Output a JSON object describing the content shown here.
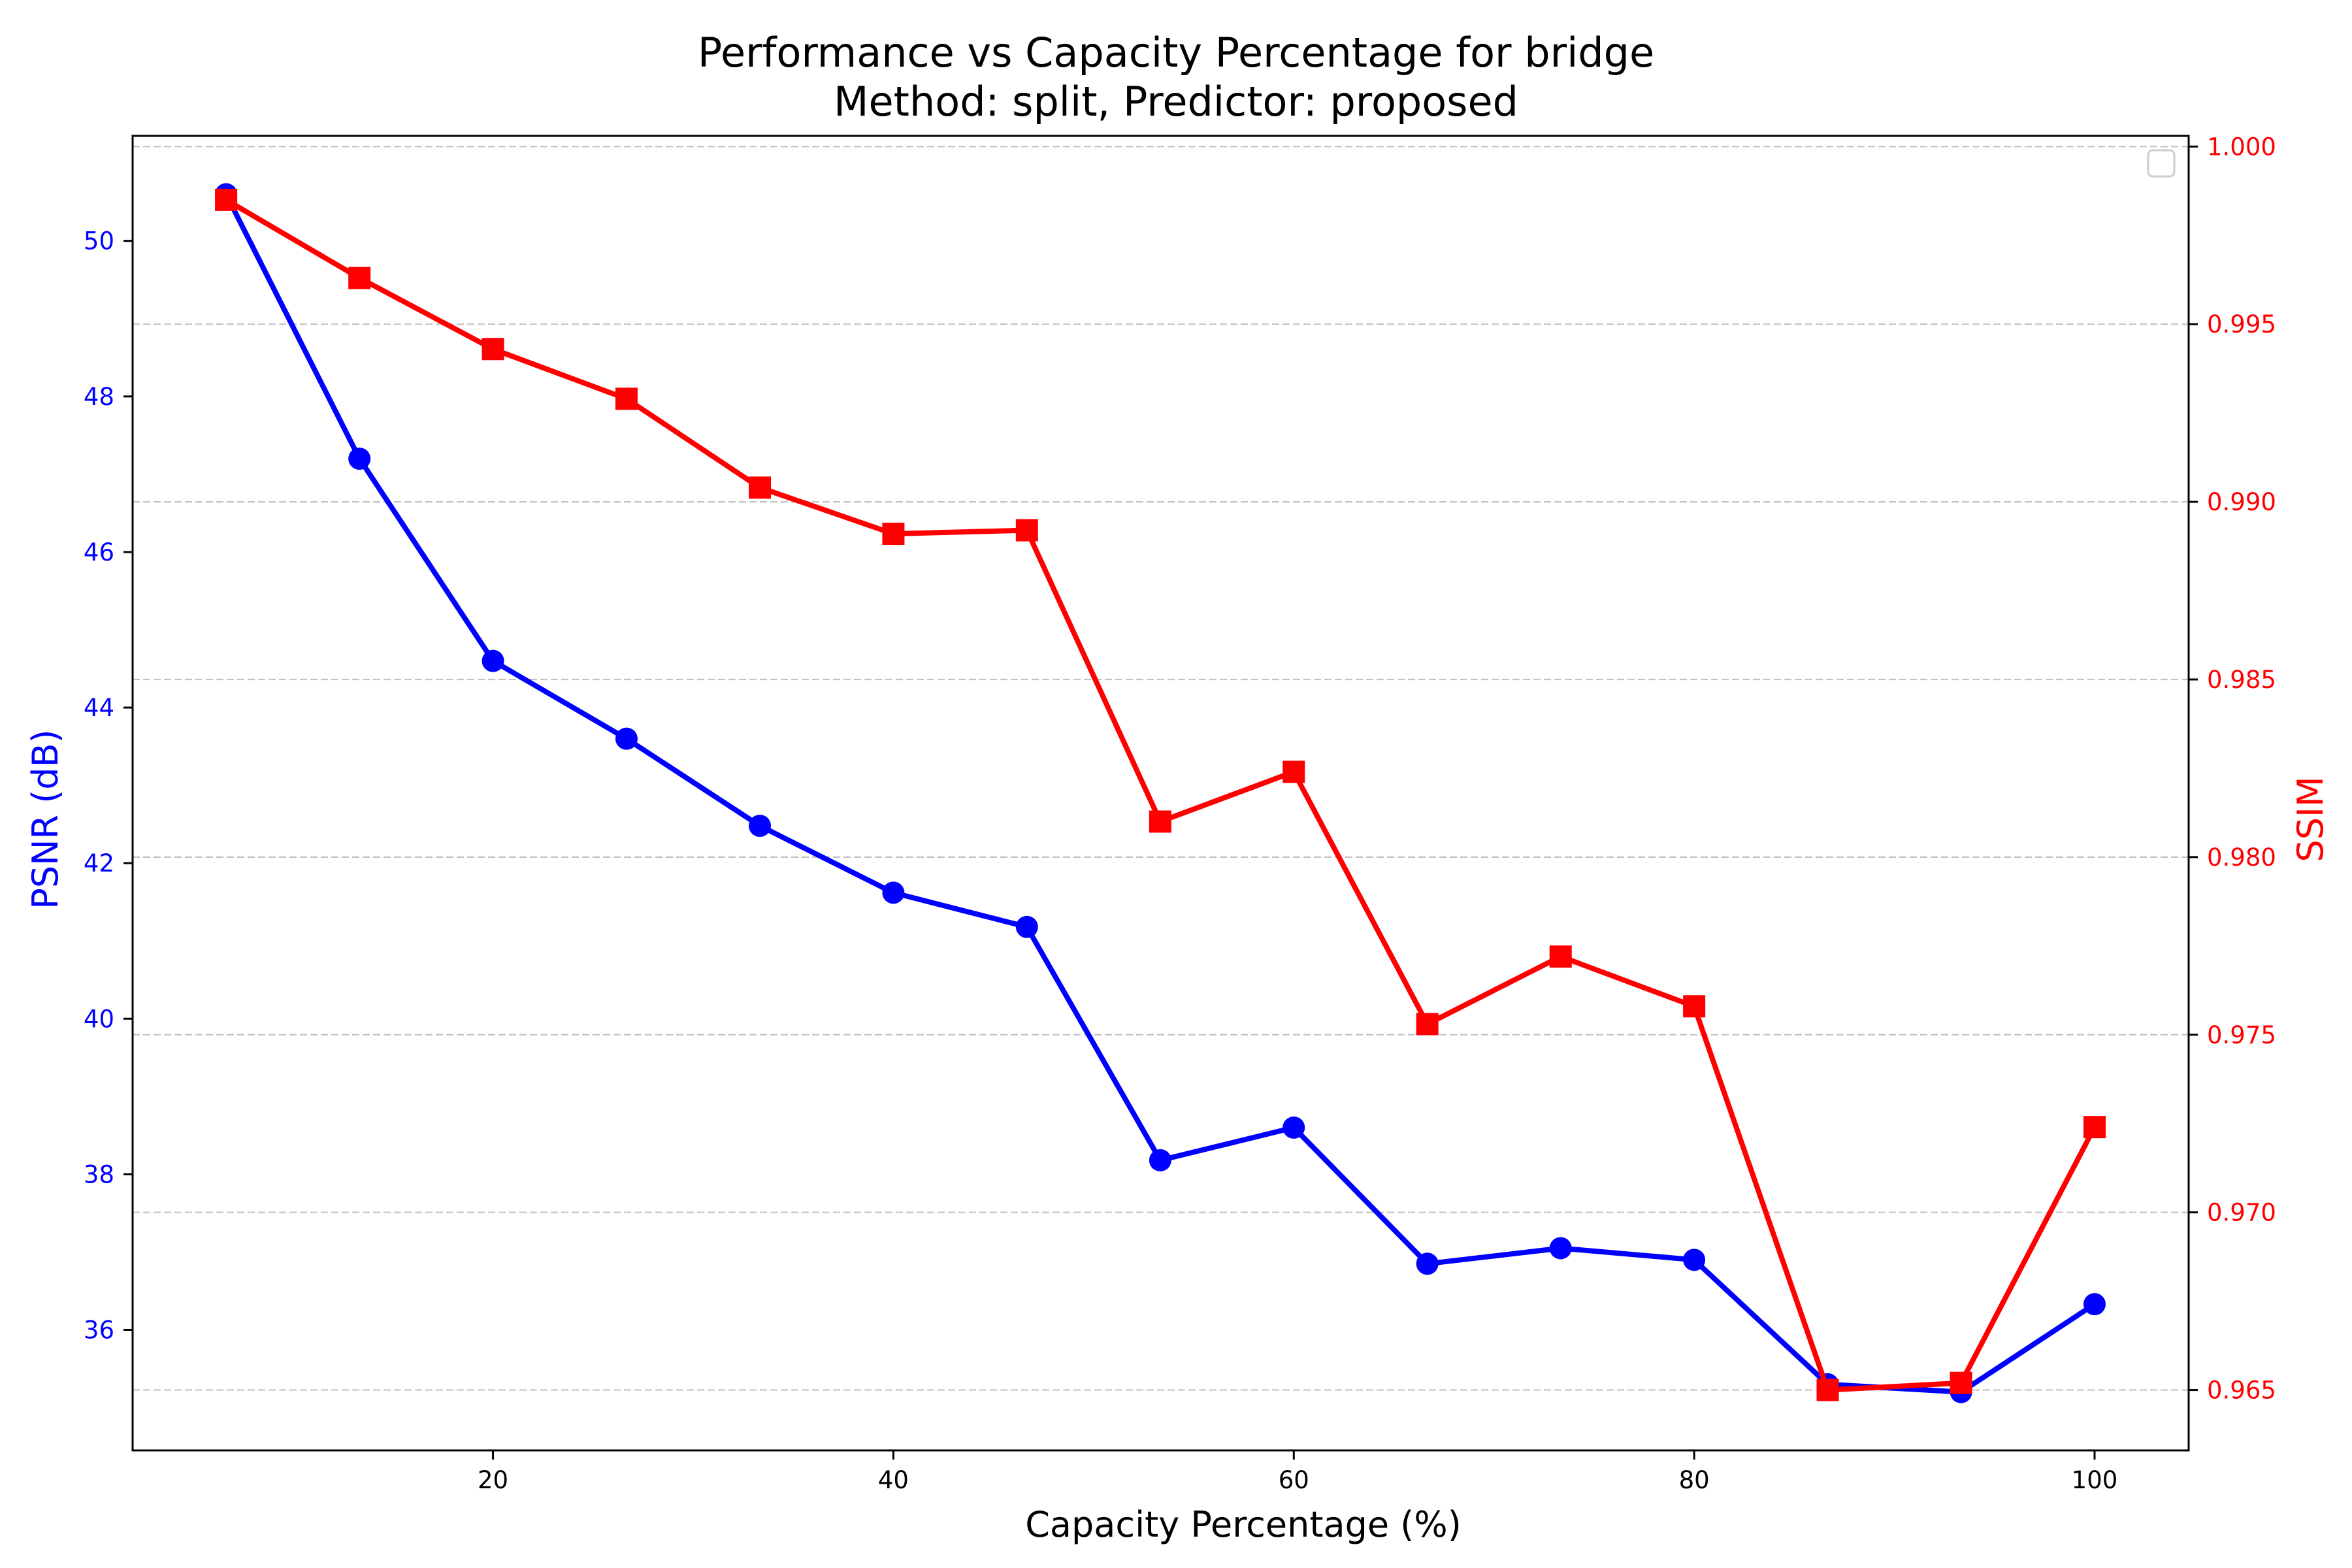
{
  "chart_data": {
    "type": "line",
    "title": "Performance vs Capacity Percentage for bridge",
    "subtitle": "Method: split, Predictor: proposed",
    "xlabel": "Capacity Percentage (%)",
    "ylabel_left": "PSNR (dB)",
    "ylabel_right": "SSIM",
    "xlim": [
      2.0,
      104.7
    ],
    "ylim_left": [
      34.45,
      51.35
    ],
    "ylim_right": [
      0.9633,
      1.0003
    ],
    "x_ticks": [
      20,
      40,
      60,
      80,
      100
    ],
    "y_ticks_left": [
      36,
      38,
      40,
      42,
      44,
      46,
      48,
      50
    ],
    "y_ticks_right": [
      0.965,
      0.97,
      0.975,
      0.98,
      0.985,
      0.99,
      0.995,
      1.0
    ],
    "grid": "horizontal dashed on right axis",
    "legend": "top-right (empty)",
    "x": [
      6.67,
      13.33,
      20.0,
      26.67,
      33.33,
      40.0,
      46.67,
      53.33,
      60.0,
      66.67,
      73.33,
      80.0,
      86.67,
      93.33,
      100.0
    ],
    "series": [
      {
        "axis": "left",
        "color": "#0000ff",
        "marker": "circle",
        "values": [
          50.6,
          47.2,
          44.6,
          43.6,
          42.48,
          41.62,
          41.18,
          38.18,
          38.6,
          36.85,
          37.05,
          36.9,
          35.3,
          35.2,
          36.33
        ]
      },
      {
        "axis": "right",
        "color": "#ff0000",
        "marker": "square",
        "values": [
          0.9985,
          0.9963,
          0.9943,
          0.9929,
          0.9904,
          0.9891,
          0.9892,
          0.981,
          0.9824,
          0.9753,
          0.9772,
          0.9758,
          0.965,
          0.9652,
          0.9724
        ]
      }
    ]
  }
}
